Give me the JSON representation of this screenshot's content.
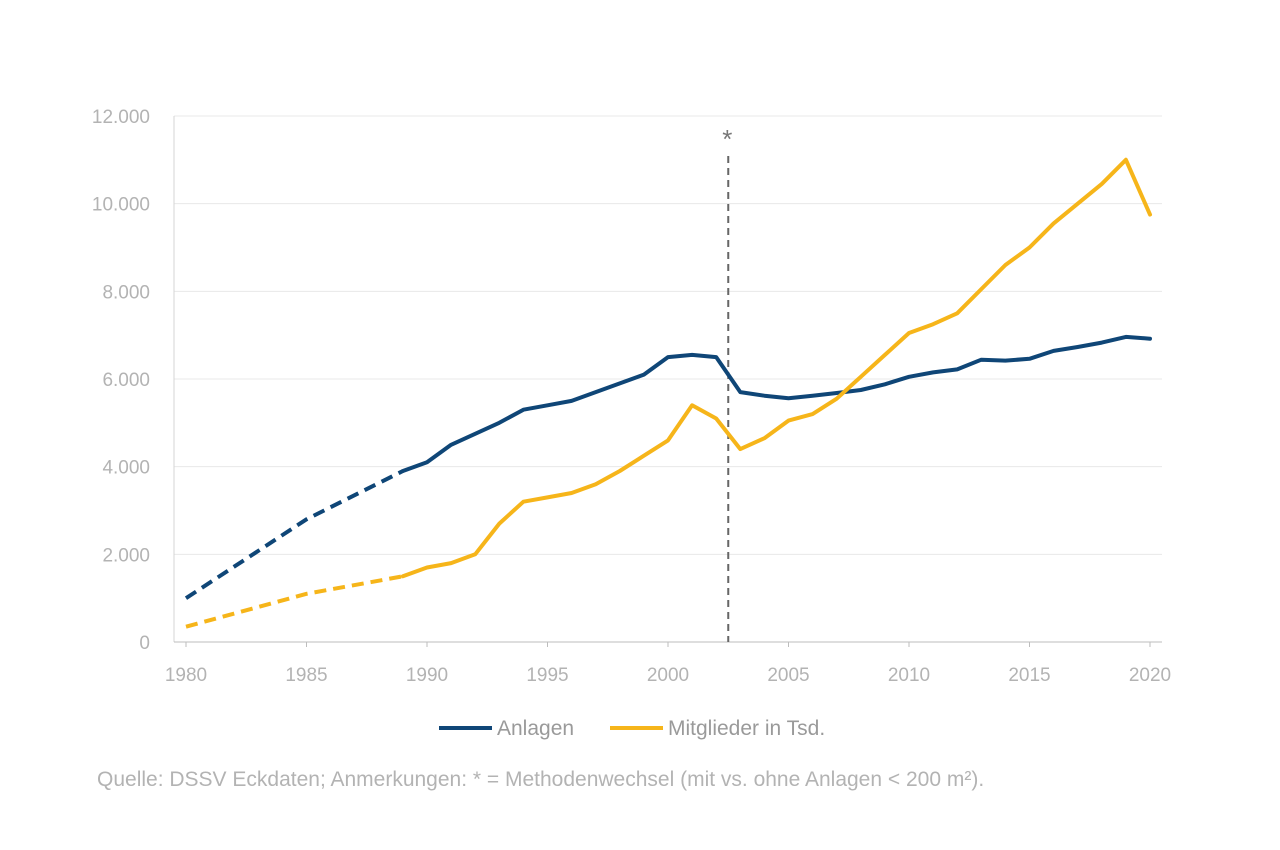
{
  "chart_data": {
    "type": "line",
    "title": "",
    "xlabel": "",
    "ylabel": "",
    "xlim": [
      1980,
      2020
    ],
    "ylim": [
      0,
      12000
    ],
    "x_ticks": [
      1980,
      1985,
      1990,
      1995,
      2000,
      2005,
      2010,
      2015,
      2020
    ],
    "x_tick_labels": [
      "1980",
      "1985",
      "1990",
      "1995",
      "2000",
      "2005",
      "2010",
      "2015",
      "2020"
    ],
    "y_ticks": [
      0,
      2000,
      4000,
      6000,
      8000,
      10000,
      12000
    ],
    "y_tick_labels": [
      "0",
      "2.000",
      "4.000",
      "6.000",
      "8.000",
      "10.000",
      "12.000"
    ],
    "grid": "horizontal",
    "legend_position": "bottom",
    "series": [
      {
        "name": "Anlagen",
        "color": "#0f4677",
        "dashed_until": 1989,
        "x": [
          1980,
          1985,
          1989,
          1990,
          1991,
          1992,
          1993,
          1994,
          1995,
          1996,
          1997,
          1998,
          1999,
          2000,
          2001,
          2002,
          2003,
          2004,
          2005,
          2006,
          2007,
          2008,
          2009,
          2010,
          2011,
          2012,
          2013,
          2014,
          2015,
          2016,
          2017,
          2018,
          2019,
          2020
        ],
        "values": [
          1000,
          2800,
          3900,
          4100,
          4500,
          4750,
          5000,
          5300,
          5400,
          5500,
          5700,
          5900,
          6100,
          6500,
          6550,
          6500,
          5700,
          5620,
          5560,
          5620,
          5680,
          5750,
          5880,
          6050,
          6150,
          6220,
          6440,
          6420,
          6460,
          6640,
          6730,
          6830,
          6960,
          6920
        ]
      },
      {
        "name": "Mitglieder in Tsd.",
        "color": "#f6b51a",
        "dashed_until": 1989,
        "x": [
          1980,
          1985,
          1989,
          1990,
          1991,
          1992,
          1993,
          1994,
          1995,
          1996,
          1997,
          1998,
          1999,
          2000,
          2001,
          2002,
          2003,
          2004,
          2005,
          2006,
          2007,
          2008,
          2009,
          2010,
          2011,
          2012,
          2013,
          2014,
          2015,
          2016,
          2017,
          2018,
          2019,
          2020
        ],
        "values": [
          350,
          1100,
          1500,
          1700,
          1800,
          2000,
          2700,
          3200,
          3300,
          3400,
          3600,
          3900,
          4250,
          4600,
          5400,
          5100,
          4400,
          4650,
          5050,
          5200,
          5550,
          6050,
          6550,
          7050,
          7250,
          7500,
          8050,
          8600,
          9000,
          9550,
          10000,
          10450,
          11000,
          9750
        ]
      }
    ],
    "annotations": [
      {
        "x": 2002.5,
        "label": "*",
        "style": "dashed-vertical",
        "color": "#666666"
      }
    ]
  },
  "footer": {
    "source": "Quelle: DSSV Eckdaten; Anmerkungen: * = Methodenwechsel (mit vs. ohne Anlagen < 200 m²)."
  }
}
